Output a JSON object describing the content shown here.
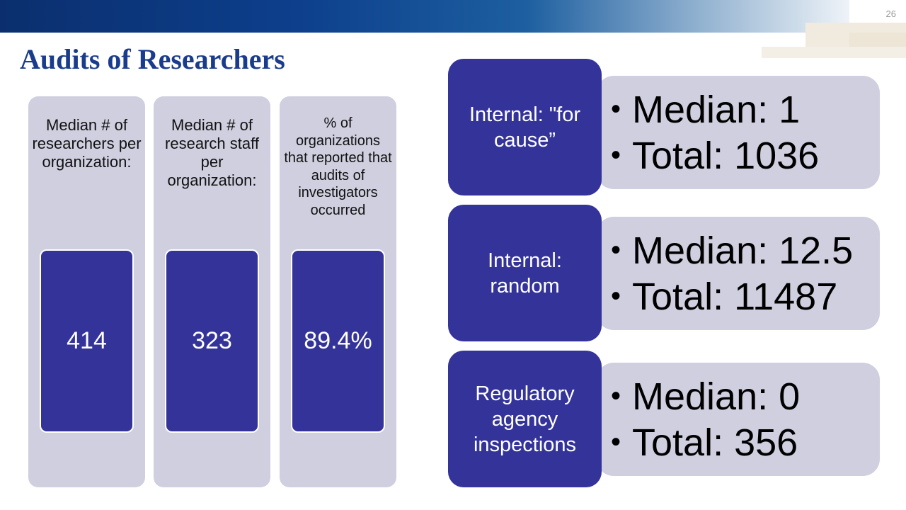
{
  "slide": {
    "number": "26",
    "title": "Audits of Researchers"
  },
  "stats": [
    {
      "label": "Median # of researchers per organization:",
      "value": "414"
    },
    {
      "label": "Median # of research staff per organization:",
      "value": "323"
    },
    {
      "label": "% of organizations that reported that audits of investigators occurred",
      "value": "89.4%"
    }
  ],
  "audits": [
    {
      "category": "Internal: \"for cause”",
      "median": "Median: 1",
      "total": "Total: 1036"
    },
    {
      "category": "Internal: random",
      "median": "Median: 12.5",
      "total": "Total: 11487"
    },
    {
      "category": "Regulatory agency inspections",
      "median": "Median: 0",
      "total": "Total: 356"
    }
  ]
}
